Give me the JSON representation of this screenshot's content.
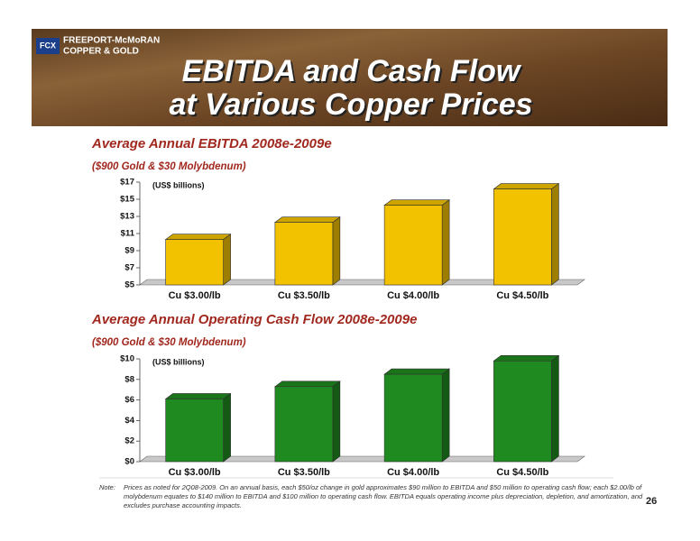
{
  "header": {
    "logo_line1": "FREEPORT-McMoRAN",
    "logo_line2": "COPPER & GOLD",
    "logo_mark": "FCX",
    "title_line1": "EBITDA and Cash Flow",
    "title_line2": "at Various Copper Prices"
  },
  "chart_data": [
    {
      "type": "bar",
      "title": "Average Annual EBITDA 2008e-2009e",
      "subtitle": "($900 Gold & $30 Molybdenum)",
      "unit_label": "(US$ billions)",
      "categories": [
        "Cu $3.00/lb",
        "Cu $3.50/lb",
        "Cu $4.00/lb",
        "Cu $4.50/lb"
      ],
      "values": [
        10.3,
        12.3,
        14.3,
        16.2
      ],
      "color": "#f2c200",
      "ylim": [
        5,
        17
      ],
      "yticks": [
        {
          "value": 5,
          "label": "$5"
        },
        {
          "value": 7,
          "label": "$7"
        },
        {
          "value": 9,
          "label": "$9"
        },
        {
          "value": 11,
          "label": "$11"
        },
        {
          "value": 13,
          "label": "$13"
        },
        {
          "value": 15,
          "label": "$15"
        },
        {
          "value": 17,
          "label": "$17"
        }
      ]
    },
    {
      "type": "bar",
      "title": "Average Annual Operating Cash Flow 2008e-2009e",
      "subtitle": "($900 Gold & $30 Molybdenum)",
      "unit_label": "(US$ billions)",
      "categories": [
        "Cu $3.00/lb",
        "Cu $3.50/lb",
        "Cu $4.00/lb",
        "Cu $4.50/lb"
      ],
      "values": [
        6.1,
        7.3,
        8.5,
        9.8
      ],
      "color": "#1f8a1f",
      "ylim": [
        0,
        10
      ],
      "yticks": [
        {
          "value": 0,
          "label": "$0"
        },
        {
          "value": 2,
          "label": "$2"
        },
        {
          "value": 4,
          "label": "$4"
        },
        {
          "value": 6,
          "label": "$6"
        },
        {
          "value": 8,
          "label": "$8"
        },
        {
          "value": 10,
          "label": "$10"
        }
      ]
    }
  ],
  "note": {
    "label": "Note:",
    "lines": [
      "Prices as noted for 2Q08-2009. On an annual basis, each $50/oz change in gold approximates $90 million to EBITDA and $50 million to operating cash flow; each $2.00/lb of",
      "molybdenum equates to $140 million to EBITDA and $100 million to operating cash flow. EBITDA equals operating income plus depreciation, depletion, and amortization, and",
      "excludes purchase accounting impacts."
    ]
  },
  "page_number": "26"
}
